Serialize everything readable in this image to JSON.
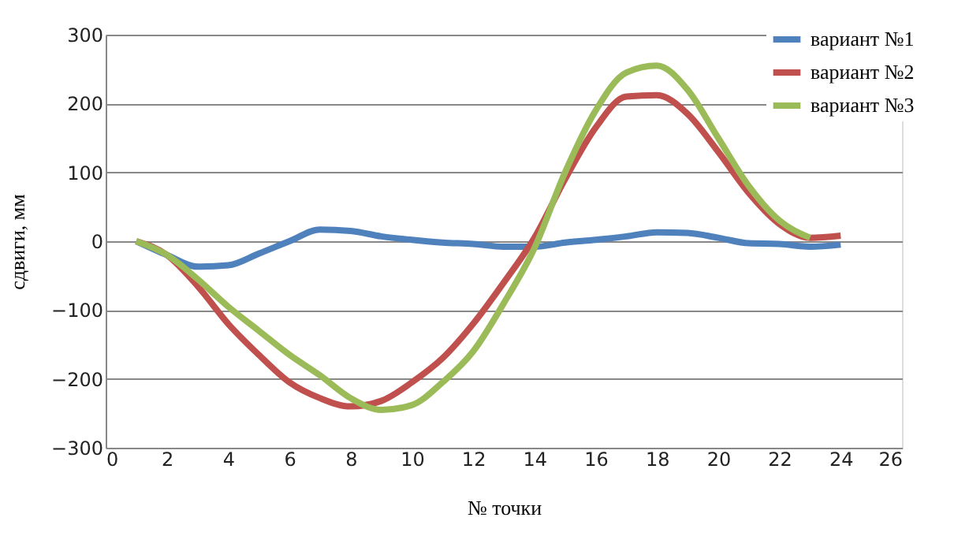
{
  "chart_data": {
    "type": "line",
    "xlabel": "№ точки",
    "ylabel": "сдвиги, мм",
    "x": [
      1,
      2,
      3,
      4,
      5,
      6,
      7,
      8,
      9,
      10,
      11,
      12,
      13,
      14,
      15,
      16,
      17,
      18,
      19,
      20,
      21,
      22,
      23,
      24
    ],
    "series": [
      {
        "name": "вариант №1",
        "color": "#4f81bd",
        "values": [
          0,
          -20,
          -37,
          -35,
          -18,
          0,
          17,
          15,
          7,
          2,
          -2,
          -4,
          -8,
          -8,
          -2,
          2,
          7,
          13,
          12,
          5,
          -3,
          -4,
          -8,
          -5
        ]
      },
      {
        "name": "вариант №2",
        "color": "#c0504d",
        "values": [
          0,
          -20,
          -65,
          -120,
          -165,
          -205,
          -228,
          -240,
          -232,
          -205,
          -170,
          -120,
          -60,
          5,
          90,
          165,
          210,
          212,
          185,
          130,
          70,
          25,
          5,
          8
        ]
      },
      {
        "name": "вариант №3",
        "color": "#9bbb59",
        "values": [
          0,
          -20,
          -55,
          -95,
          -130,
          -165,
          -195,
          -228,
          -245,
          -238,
          -205,
          -160,
          -90,
          -10,
          100,
          190,
          245,
          255,
          220,
          150,
          80,
          30,
          5,
          null
        ]
      }
    ],
    "xlim": [
      0,
      26
    ],
    "xticks": [
      0,
      2,
      4,
      6,
      8,
      10,
      12,
      14,
      16,
      18,
      20,
      22,
      24,
      26
    ],
    "ylim": [
      -300,
      300
    ],
    "yticks": [
      -300,
      -200,
      -100,
      0,
      100,
      200,
      300
    ],
    "grid": "y",
    "legend": "top right",
    "marker": "none",
    "line_style": "solid"
  }
}
